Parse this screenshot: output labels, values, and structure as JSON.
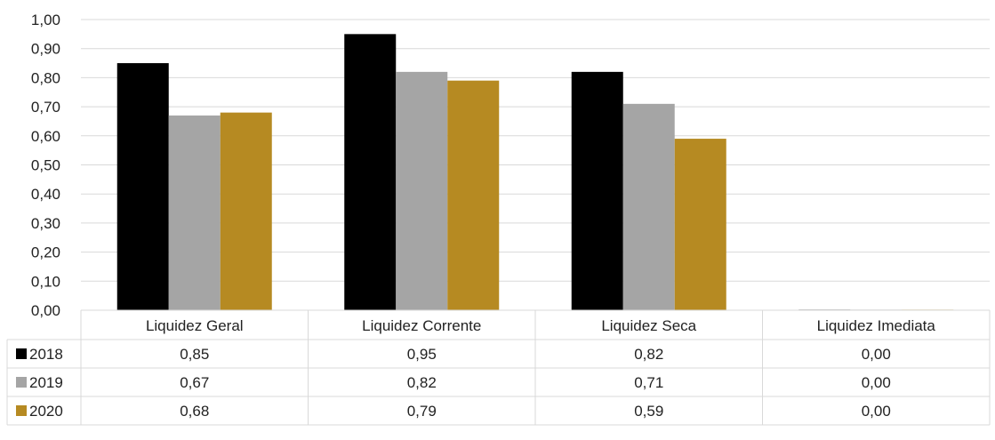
{
  "chart_data": {
    "type": "bar",
    "categories": [
      "Liquidez Geral",
      "Liquidez Corrente",
      "Liquidez Seca",
      "Liquidez Imediata"
    ],
    "series": [
      {
        "name": "2018",
        "values": [
          0.85,
          0.95,
          0.82,
          0.0
        ],
        "labels": [
          "0,85",
          "0,95",
          "0,82",
          "0,00"
        ],
        "color": "#000000"
      },
      {
        "name": "2019",
        "values": [
          0.67,
          0.82,
          0.71,
          0.0
        ],
        "labels": [
          "0,67",
          "0,82",
          "0,71",
          "0,00"
        ],
        "color": "#A5A5A5"
      },
      {
        "name": "2020",
        "values": [
          0.68,
          0.79,
          0.59,
          0.0
        ],
        "labels": [
          "0,68",
          "0,79",
          "0,59",
          "0,00"
        ],
        "color": "#B68A22"
      }
    ],
    "y_ticks": [
      0.0,
      0.1,
      0.2,
      0.3,
      0.4,
      0.5,
      0.6,
      0.7,
      0.8,
      0.9,
      1.0
    ],
    "y_tick_labels": [
      "0,00",
      "0,10",
      "0,20",
      "0,30",
      "0,40",
      "0,50",
      "0,60",
      "0,70",
      "0,80",
      "0,90",
      "1,00"
    ],
    "ylim": [
      0,
      1.0
    ],
    "grid": true,
    "legend": "data-table-left",
    "data_table": true
  }
}
